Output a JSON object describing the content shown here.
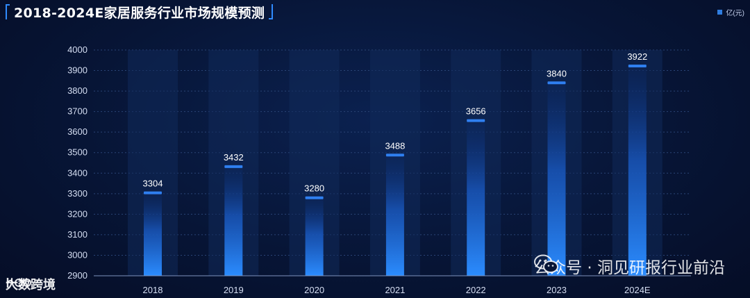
{
  "chart_data": {
    "type": "bar",
    "title": "2018-2024E家居服务行业市场规模预测",
    "legend": "亿(元)",
    "categories": [
      "2018",
      "2019",
      "2020",
      "2021",
      "2022",
      "2023",
      "2024E"
    ],
    "series": [
      {
        "name": "亿(元)",
        "values": [
          3304,
          3432,
          3280,
          3488,
          3656,
          3840,
          3922
        ]
      }
    ],
    "ylim": [
      2900,
      4000
    ],
    "yticks": [
      2900,
      3000,
      3100,
      3200,
      3300,
      3400,
      3500,
      3600,
      3700,
      3800,
      3900,
      4000
    ],
    "grid": true,
    "legend_position": "top-right",
    "colors": {
      "bar_top": "#0a2f7a",
      "bar_bottom": "#2b8cff",
      "cap": "#2f7ff0",
      "track": "#112a5a"
    }
  },
  "watermarks": {
    "right": "公众号 · 洞见研报行业前沿",
    "left": "大数跨境"
  }
}
